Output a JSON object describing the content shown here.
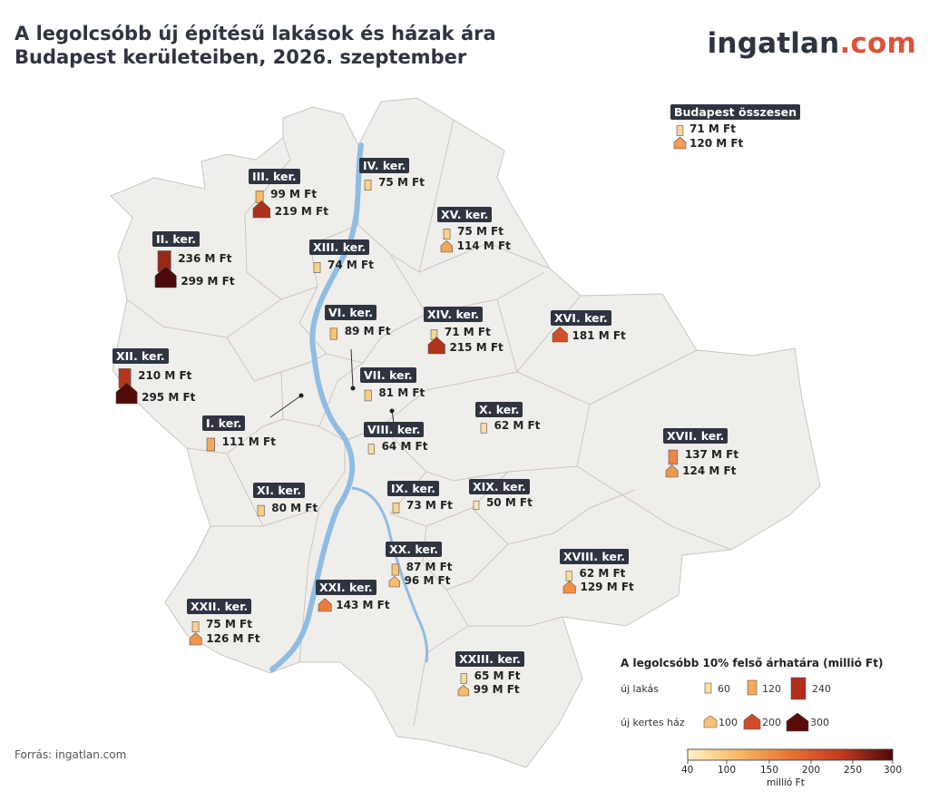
{
  "title_line1": "A legolcsóbb új építésű lakások és házak ára",
  "title_line2": "Budapest kerületeiben, 2026. szeptember",
  "logo_main": "ingatlan",
  "logo_tld": ".com",
  "source": "Forrás: ingatlan.com",
  "total": {
    "label": "Budapest összesen",
    "lakas": "71 M Ft",
    "haz": "120 M Ft",
    "lakas_value": 71,
    "haz_value": 120
  },
  "districts": [
    {
      "id": "iii",
      "label": "III. ker.",
      "lakas": "99 M Ft",
      "lakas_value": 99,
      "haz": "219 M Ft",
      "haz_value": 219
    },
    {
      "id": "iv",
      "label": "IV. ker.",
      "lakas": "75 M Ft",
      "lakas_value": 75
    },
    {
      "id": "xv",
      "label": "XV. ker.",
      "lakas": "75 M Ft",
      "lakas_value": 75,
      "haz": "114 M Ft",
      "haz_value": 114
    },
    {
      "id": "ii",
      "label": "II. ker.",
      "lakas": "236 M Ft",
      "lakas_value": 236,
      "haz": "299 M Ft",
      "haz_value": 299
    },
    {
      "id": "xiii",
      "label": "XIII. ker.",
      "lakas": "74 M Ft",
      "lakas_value": 74
    },
    {
      "id": "vi",
      "label": "VI. ker.",
      "lakas": "89 M Ft",
      "lakas_value": 89
    },
    {
      "id": "xiv",
      "label": "XIV. ker.",
      "lakas": "71 M Ft",
      "lakas_value": 71,
      "haz": "215 M Ft",
      "haz_value": 215
    },
    {
      "id": "xvi",
      "label": "XVI. ker.",
      "haz": "181 M Ft",
      "haz_value": 181
    },
    {
      "id": "xii",
      "label": "XII. ker.",
      "lakas": "210 M Ft",
      "lakas_value": 210,
      "haz": "295 M Ft",
      "haz_value": 295
    },
    {
      "id": "vii",
      "label": "VII. ker.",
      "lakas": "81 M Ft",
      "lakas_value": 81
    },
    {
      "id": "x",
      "label": "X. ker.",
      "lakas": "62 M Ft",
      "lakas_value": 62
    },
    {
      "id": "i",
      "label": "I. ker.",
      "lakas": "111 M Ft",
      "lakas_value": 111
    },
    {
      "id": "viii",
      "label": "VIII. ker.",
      "lakas": "64 M Ft",
      "lakas_value": 64
    },
    {
      "id": "xvii",
      "label": "XVII. ker.",
      "lakas": "137 M Ft",
      "lakas_value": 137,
      "haz": "124 M Ft",
      "haz_value": 124
    },
    {
      "id": "xi",
      "label": "XI. ker.",
      "lakas": "80 M Ft",
      "lakas_value": 80
    },
    {
      "id": "ix",
      "label": "IX. ker.",
      "lakas": "73 M Ft",
      "lakas_value": 73
    },
    {
      "id": "xix",
      "label": "XIX. ker.",
      "lakas": "50 M Ft",
      "lakas_value": 50
    },
    {
      "id": "xx",
      "label": "XX. ker.",
      "lakas": "87 M Ft",
      "lakas_value": 87,
      "haz": "96 M Ft",
      "haz_value": 96
    },
    {
      "id": "xviii",
      "label": "XVIII. ker.",
      "lakas": "62 M Ft",
      "lakas_value": 62,
      "haz": "129 M Ft",
      "haz_value": 129
    },
    {
      "id": "xxi",
      "label": "XXI. ker.",
      "haz": "143 M Ft",
      "haz_value": 143
    },
    {
      "id": "xxii",
      "label": "XXII. ker.",
      "lakas": "75 M Ft",
      "lakas_value": 75,
      "haz": "126 M Ft",
      "haz_value": 126
    },
    {
      "id": "xxiii",
      "label": "XXIII. ker.",
      "lakas": "65 M Ft",
      "lakas_value": 65,
      "haz": "99 M Ft",
      "haz_value": 99
    }
  ],
  "legend": {
    "title": "A legolcsóbb 10% felső árhatára (millió Ft)",
    "lakas_label": "új lakás",
    "haz_label": "új kertes ház",
    "lakas_values": [
      "60",
      "120",
      "240"
    ],
    "haz_values": [
      "100",
      "200",
      "300"
    ],
    "colorbar_ticks": [
      "40",
      "100",
      "150",
      "200",
      "250",
      "300"
    ],
    "colorbar_label": "millió Ft"
  },
  "colors": {
    "map_fill": "#f0eeeb",
    "border": "#c9c6c1",
    "river": "#8fbce3",
    "label_bg": "#2e3440",
    "logo_accent": "#d9553a"
  }
}
